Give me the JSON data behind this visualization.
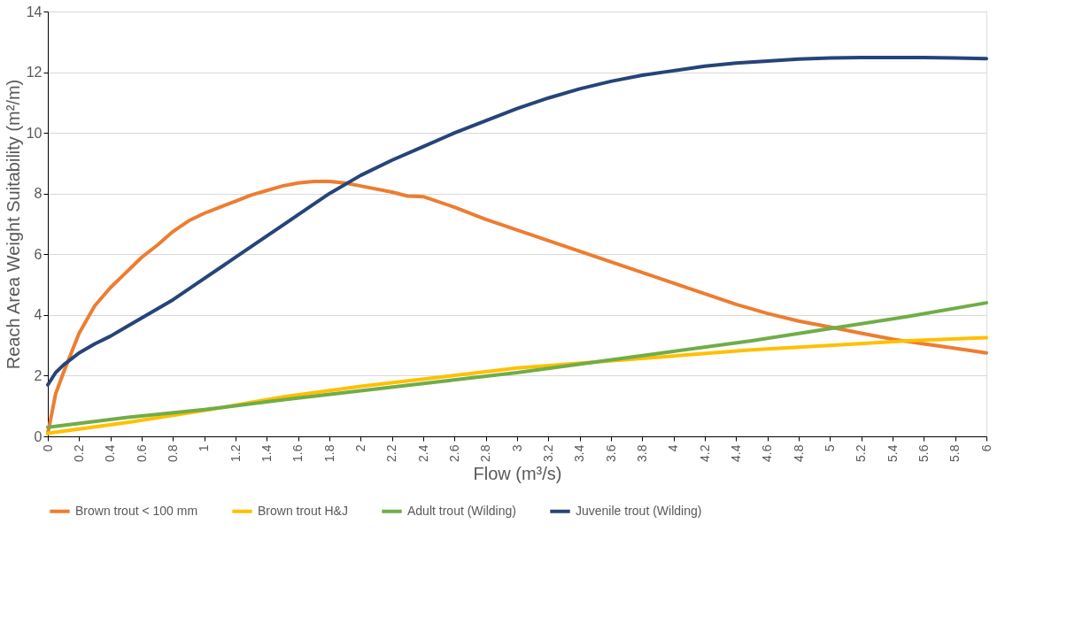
{
  "chart_data": {
    "type": "line",
    "xlabel": "Flow (m³/s)",
    "ylabel": "Reach Area Weight Suitability (m²/m)",
    "xlim": [
      0,
      6
    ],
    "xticks": [
      0,
      0.2,
      0.4,
      0.6,
      0.8,
      1,
      1.2,
      1.4,
      1.6,
      1.8,
      2,
      2.2,
      2.4,
      2.6,
      2.8,
      3,
      3.2,
      3.4,
      3.6,
      3.8,
      4,
      4.2,
      4.4,
      4.6,
      4.8,
      5,
      5.2,
      5.4,
      5.6,
      5.8,
      6
    ],
    "ylim": [
      0,
      14
    ],
    "yticks": [
      0,
      2,
      4,
      6,
      8,
      10,
      12,
      14
    ],
    "grid": "y",
    "legend": "bottom",
    "marker": "none",
    "line_style": "solid",
    "series": [
      {
        "name": "Brown trout < 100 mm",
        "color": "#ed7d31",
        "x": [
          0,
          0.05,
          0.1,
          0.2,
          0.3,
          0.4,
          0.5,
          0.6,
          0.7,
          0.8,
          0.9,
          1.0,
          1.1,
          1.2,
          1.3,
          1.4,
          1.5,
          1.6,
          1.7,
          1.8,
          1.9,
          2.0,
          2.2,
          2.3,
          2.4,
          2.6,
          2.8,
          3.0,
          3.2,
          3.4,
          3.6,
          3.8,
          4.0,
          4.2,
          4.4,
          4.6,
          4.8,
          5.0,
          5.2,
          5.4,
          5.6,
          5.8,
          6.0
        ],
        "values": [
          0.1,
          1.4,
          2.1,
          3.4,
          4.3,
          4.9,
          5.4,
          5.9,
          6.3,
          6.75,
          7.1,
          7.35,
          7.55,
          7.75,
          7.95,
          8.1,
          8.25,
          8.35,
          8.4,
          8.4,
          8.35,
          8.25,
          8.05,
          7.92,
          7.9,
          7.55,
          7.15,
          6.8,
          6.45,
          6.1,
          5.75,
          5.4,
          5.05,
          4.7,
          4.35,
          4.05,
          3.8,
          3.6,
          3.4,
          3.2,
          3.05,
          2.9,
          2.75
        ]
      },
      {
        "name": "Brown trout H&J",
        "color": "#ffc000",
        "x": [
          0,
          0.5,
          1,
          1.5,
          2,
          2.5,
          3,
          3.5,
          4,
          4.5,
          5,
          5.5,
          6
        ],
        "values": [
          0.1,
          0.45,
          0.85,
          1.3,
          1.65,
          1.95,
          2.25,
          2.45,
          2.65,
          2.85,
          3.0,
          3.15,
          3.25
        ]
      },
      {
        "name": "Adult trout (Wilding)",
        "color": "#70ad47",
        "x": [
          0,
          0.5,
          1,
          1.5,
          2,
          2.5,
          3,
          3.5,
          4,
          4.5,
          5,
          5.5,
          6
        ],
        "values": [
          0.3,
          0.62,
          0.88,
          1.2,
          1.5,
          1.8,
          2.1,
          2.45,
          2.8,
          3.15,
          3.55,
          3.95,
          4.4
        ]
      },
      {
        "name": "Juvenile trout (Wilding)",
        "color": "#264478",
        "x": [
          0,
          0.05,
          0.1,
          0.2,
          0.3,
          0.4,
          0.5,
          0.6,
          0.8,
          1.0,
          1.2,
          1.4,
          1.6,
          1.8,
          2.0,
          2.2,
          2.4,
          2.6,
          2.8,
          3.0,
          3.2,
          3.4,
          3.6,
          3.8,
          4.0,
          4.2,
          4.4,
          4.6,
          4.8,
          5.0,
          5.2,
          5.4,
          5.6,
          5.8,
          6.0
        ],
        "values": [
          1.7,
          2.1,
          2.35,
          2.75,
          3.05,
          3.3,
          3.6,
          3.9,
          4.5,
          5.2,
          5.9,
          6.6,
          7.3,
          8.0,
          8.6,
          9.1,
          9.55,
          10.0,
          10.4,
          10.8,
          11.15,
          11.45,
          11.7,
          11.9,
          12.05,
          12.2,
          12.3,
          12.37,
          12.43,
          12.47,
          12.48,
          12.48,
          12.48,
          12.47,
          12.45
        ]
      }
    ]
  }
}
